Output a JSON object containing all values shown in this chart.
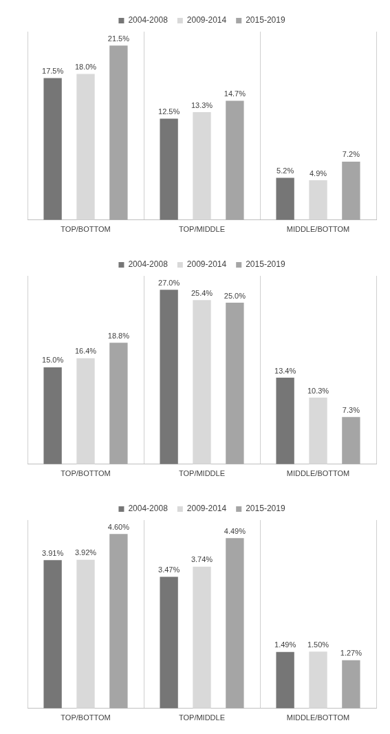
{
  "chart_data": [
    {
      "type": "bar",
      "categories": [
        "TOP/BOTTOM",
        "TOP/MIDDLE",
        "MIDDLE/BOTTOM"
      ],
      "series": [
        {
          "name": "2004-2008",
          "color": "#767676",
          "values": [
            17.5,
            12.5,
            5.2
          ],
          "value_labels": [
            "17.5%",
            "12.5%",
            "5.2%"
          ]
        },
        {
          "name": "2009-2014",
          "color": "#d9d9d9",
          "values": [
            18.0,
            13.3,
            4.9
          ],
          "value_labels": [
            "18.0%",
            "13.3%",
            "4.9%"
          ]
        },
        {
          "name": "2015-2019",
          "color": "#a5a5a5",
          "values": [
            21.5,
            14.7,
            7.2
          ],
          "value_labels": [
            "21.5%",
            "14.7%",
            "7.2%"
          ]
        }
      ],
      "tick_labels": "x",
      "grid": "x",
      "legend": "top"
    },
    {
      "type": "bar",
      "categories": [
        "TOP/BOTTOM",
        "TOP/MIDDLE",
        "MIDDLE/BOTTOM"
      ],
      "series": [
        {
          "name": "2004-2008",
          "color": "#767676",
          "values": [
            15.0,
            27.0,
            13.4
          ],
          "value_labels": [
            "15.0%",
            "27.0%",
            "13.4%"
          ]
        },
        {
          "name": "2009-2014",
          "color": "#d9d9d9",
          "values": [
            16.4,
            25.4,
            10.3
          ],
          "value_labels": [
            "16.4%",
            "25.4%",
            "10.3%"
          ]
        },
        {
          "name": "2015-2019",
          "color": "#a5a5a5",
          "values": [
            18.8,
            25.0,
            7.3
          ],
          "value_labels": [
            "18.8%",
            "25.0%",
            "7.3%"
          ]
        }
      ],
      "tick_labels": "x",
      "grid": "x",
      "legend": "top"
    },
    {
      "type": "bar",
      "categories": [
        "TOP/BOTTOM",
        "TOP/MIDDLE",
        "MIDDLE/BOTTOM"
      ],
      "series": [
        {
          "name": "2004-2008",
          "color": "#767676",
          "values": [
            3.91,
            3.47,
            1.49
          ],
          "value_labels": [
            "3.91%",
            "3.47%",
            "1.49%"
          ]
        },
        {
          "name": "2009-2014",
          "color": "#d9d9d9",
          "values": [
            3.92,
            3.74,
            1.5
          ],
          "value_labels": [
            "3.92%",
            "3.74%",
            "1.50%"
          ]
        },
        {
          "name": "2015-2019",
          "color": "#a5a5a5",
          "values": [
            4.6,
            4.49,
            1.27
          ],
          "value_labels": [
            "4.60%",
            "4.49%",
            "1.27%"
          ]
        }
      ],
      "tick_labels": "x",
      "grid": "x",
      "legend": "top"
    }
  ]
}
